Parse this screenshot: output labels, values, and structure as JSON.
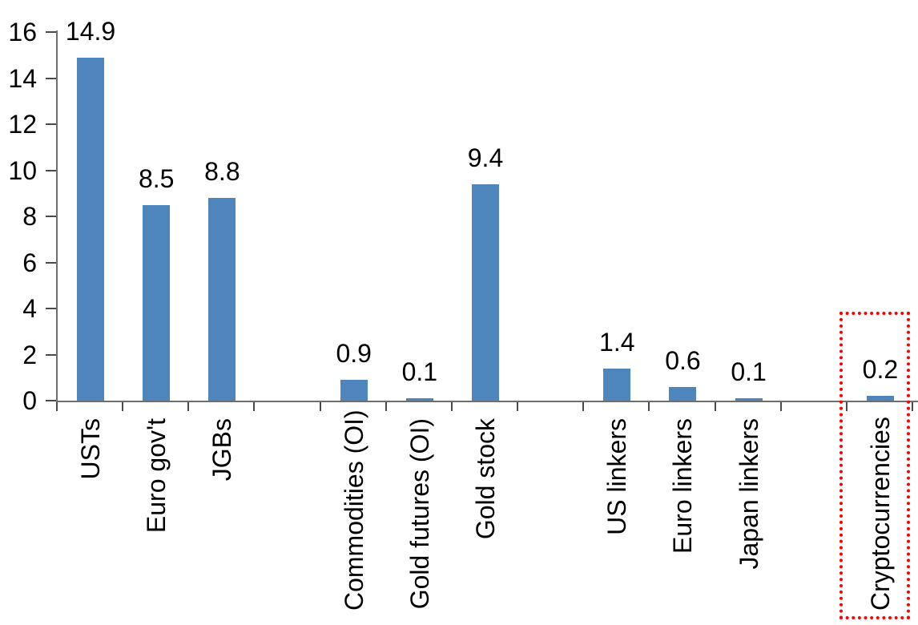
{
  "chart_data": {
    "type": "bar",
    "title": "",
    "xlabel": "",
    "ylabel": "",
    "categories": [
      "USTs",
      "Euro gov't",
      "JGBs",
      "Commodities (OI)",
      "Gold futures (OI)",
      "Gold stock",
      "US linkers",
      "Euro linkers",
      "Japan linkers",
      "Cryptocurrencies"
    ],
    "values": [
      14.9,
      8.5,
      8.8,
      0.9,
      0.1,
      9.4,
      1.4,
      0.6,
      0.1,
      0.2
    ],
    "value_labels": [
      "14.9",
      "8.5",
      "8.8",
      "0.9",
      "0.1",
      "9.4",
      "1.4",
      "0.6",
      "0.1",
      "0.2"
    ],
    "slots": [
      0,
      1,
      2,
      4,
      5,
      6,
      8,
      9,
      10,
      12
    ],
    "total_slots": 13,
    "y_ticks": [
      "0",
      "2",
      "4",
      "6",
      "8",
      "10",
      "12",
      "14",
      "16"
    ],
    "ylim": [
      0,
      16
    ],
    "grid": false,
    "legend": null,
    "bar_color": "#4E85BD",
    "axis_color": "#6e6e6e",
    "tick_color": "#4a4a4a",
    "text_color": "#000000",
    "highlight": {
      "category": "Cryptocurrencies",
      "style": "red-dotted-box",
      "color": "#ff0000"
    }
  }
}
